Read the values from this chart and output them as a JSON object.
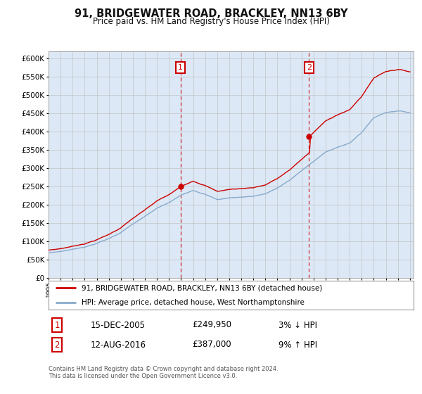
{
  "title": "91, BRIDGEWATER ROAD, BRACKLEY, NN13 6BY",
  "subtitle": "Price paid vs. HM Land Registry's House Price Index (HPI)",
  "ylim": [
    0,
    620000
  ],
  "ytick_values": [
    0,
    50000,
    100000,
    150000,
    200000,
    250000,
    300000,
    350000,
    400000,
    450000,
    500000,
    550000,
    600000
  ],
  "x_start_year": 1995,
  "x_end_year": 2025,
  "purchase1_date": 2005.96,
  "purchase1_price": 249950,
  "purchase1_year_label": "15-DEC-2005",
  "purchase1_amount": "£249,950",
  "purchase1_hpi": "3% ↓ HPI",
  "purchase2_date": 2016.62,
  "purchase2_price": 387000,
  "purchase2_year_label": "12-AUG-2016",
  "purchase2_amount": "£387,000",
  "purchase2_hpi": "9% ↑ HPI",
  "legend_line1": "91, BRIDGEWATER ROAD, BRACKLEY, NN13 6BY (detached house)",
  "legend_line2": "HPI: Average price, detached house, West Northamptonshire",
  "footer": "Contains HM Land Registry data © Crown copyright and database right 2024.\nThis data is licensed under the Open Government Licence v3.0.",
  "line_color_red": "#cc0000",
  "line_color_blue": "#88aacc",
  "bg_color": "#dce8f5",
  "grid_color": "#bbbbbb",
  "outer_bg": "#ffffff",
  "hpi_anchors_x": [
    1995,
    1996,
    1997,
    1998,
    1999,
    2000,
    2001,
    2002,
    2003,
    2004,
    2005,
    2006,
    2007,
    2008,
    2009,
    2010,
    2011,
    2012,
    2013,
    2014,
    2015,
    2016,
    2017,
    2018,
    2019,
    2020,
    2021,
    2022,
    2023,
    2024,
    2025
  ],
  "hpi_anchors_y": [
    68000,
    72000,
    78000,
    85000,
    95000,
    108000,
    125000,
    148000,
    168000,
    190000,
    205000,
    225000,
    240000,
    230000,
    215000,
    220000,
    222000,
    225000,
    232000,
    248000,
    268000,
    295000,
    320000,
    345000,
    360000,
    370000,
    400000,
    440000,
    455000,
    460000,
    455000
  ]
}
